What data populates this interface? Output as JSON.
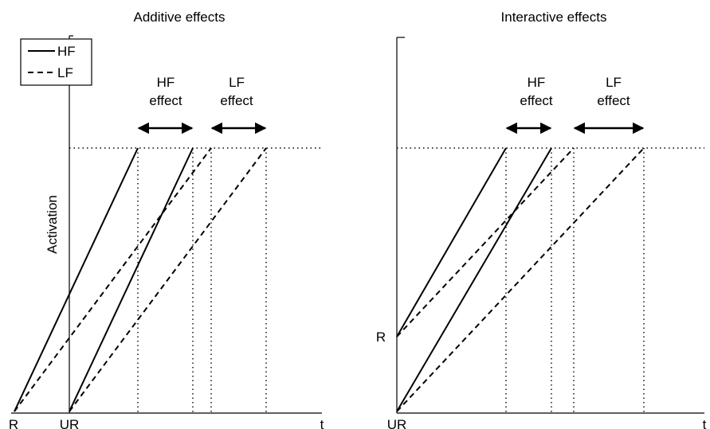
{
  "panels": {
    "left": {
      "title": "Additive effects",
      "ylabel": "Activation",
      "x_labels": [
        "R",
        "UR",
        "t"
      ],
      "annotations": [
        {
          "line1": "HF",
          "line2": "effect"
        },
        {
          "line1": "LF",
          "line2": "effect"
        }
      ]
    },
    "right": {
      "title": "Interactive effects",
      "y_labels": [
        "R"
      ],
      "x_labels": [
        "UR",
        "t"
      ],
      "annotations": [
        {
          "line1": "HF",
          "line2": "effect"
        },
        {
          "line1": "LF",
          "line2": "effect"
        }
      ]
    }
  },
  "legend": {
    "items": [
      {
        "label": "HF",
        "style": "solid"
      },
      {
        "label": "LF",
        "style": "dashed"
      }
    ]
  },
  "colors": {
    "ink": "#000000",
    "background": "#ffffff"
  }
}
